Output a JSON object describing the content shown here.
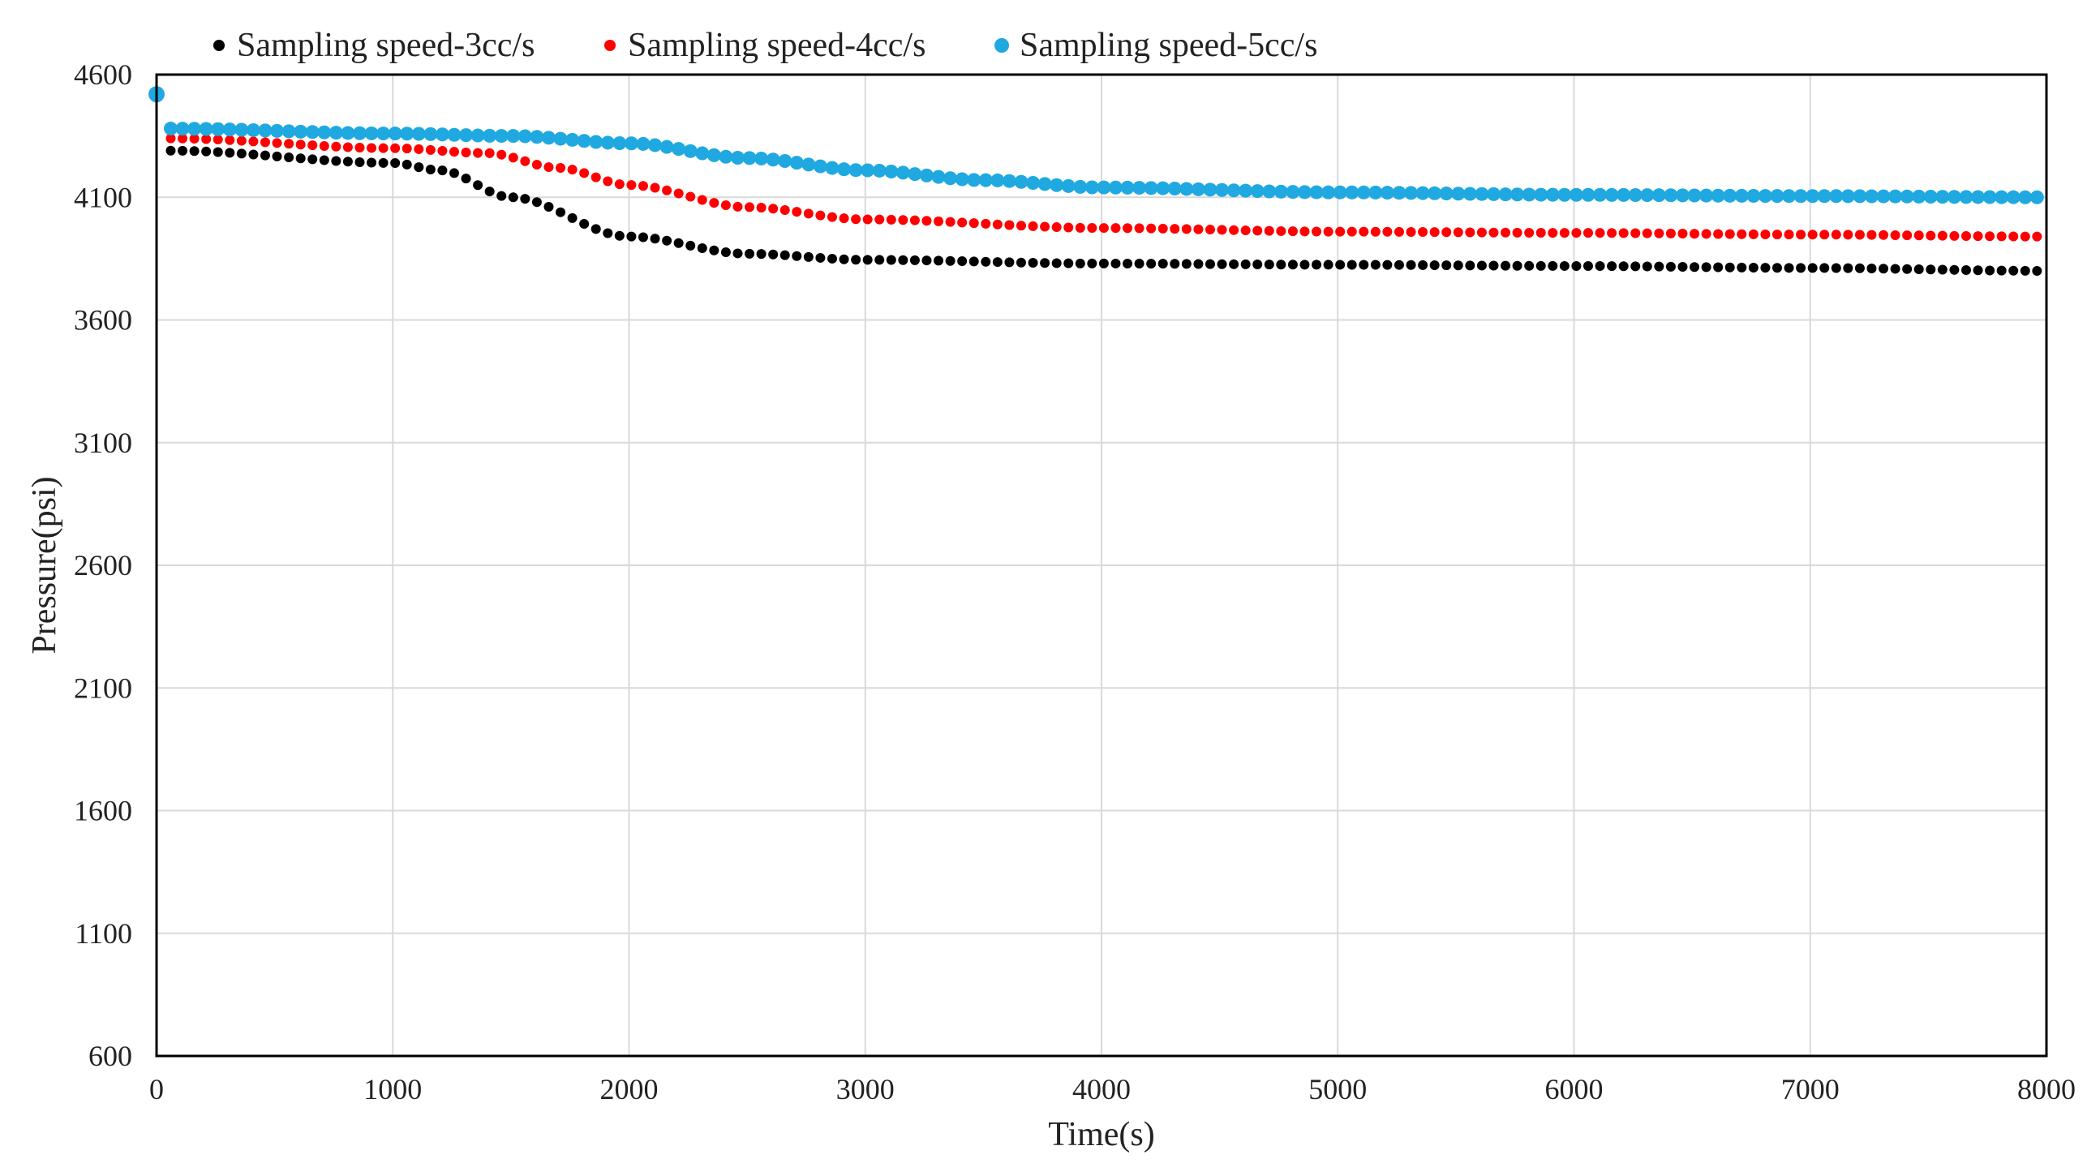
{
  "chart_data": {
    "type": "scatter",
    "xlabel": "Time(s)",
    "ylabel": "Pressure(psi)",
    "xlim": [
      0,
      8000
    ],
    "ylim": [
      600,
      4600
    ],
    "xticks": [
      0,
      1000,
      2000,
      3000,
      4000,
      5000,
      6000,
      7000,
      8000
    ],
    "yticks": [
      600,
      1100,
      1600,
      2100,
      2600,
      3100,
      3600,
      4100,
      4600
    ],
    "grid": true,
    "legend_position": "top",
    "series": [
      {
        "name": "Sampling speed-3cc/s",
        "color": "#000000",
        "marker": "small",
        "curve": {
          "x_start": 60,
          "x_end": 8000,
          "step": 50,
          "points": [
            [
              60,
              4290
            ],
            [
              1000,
              4240
            ],
            [
              1200,
              4210
            ],
            [
              1500,
              4100
            ],
            [
              2000,
              3940
            ],
            [
              2500,
              3870
            ],
            [
              3000,
              3845
            ],
            [
              4000,
              3830
            ],
            [
              5000,
              3825
            ],
            [
              6000,
              3820
            ],
            [
              7000,
              3812
            ],
            [
              8000,
              3800
            ]
          ]
        }
      },
      {
        "name": "Sampling speed-4cc/s",
        "color": "#ff0000",
        "marker": "small",
        "curve": {
          "x_start": 60,
          "x_end": 8000,
          "step": 50,
          "points": [
            [
              60,
              4340
            ],
            [
              1000,
              4300
            ],
            [
              1400,
              4280
            ],
            [
              1700,
              4220
            ],
            [
              2000,
              4150
            ],
            [
              2500,
              4060
            ],
            [
              3000,
              4010
            ],
            [
              4000,
              3975
            ],
            [
              5000,
              3960
            ],
            [
              6000,
              3955
            ],
            [
              7000,
              3948
            ],
            [
              8000,
              3940
            ]
          ]
        }
      },
      {
        "name": "Sampling speed-5cc/s",
        "color": "#1fa9e0",
        "marker": "large",
        "initial_point": [
          0,
          4520
        ],
        "curve": {
          "x_start": 60,
          "x_end": 8000,
          "step": 50,
          "points": [
            [
              60,
              4380
            ],
            [
              1000,
              4360
            ],
            [
              1500,
              4350
            ],
            [
              2000,
              4320
            ],
            [
              2500,
              4260
            ],
            [
              3000,
              4210
            ],
            [
              3500,
              4170
            ],
            [
              4000,
              4140
            ],
            [
              5000,
              4120
            ],
            [
              6000,
              4110
            ],
            [
              7000,
              4105
            ],
            [
              8000,
              4100
            ]
          ]
        }
      }
    ]
  }
}
